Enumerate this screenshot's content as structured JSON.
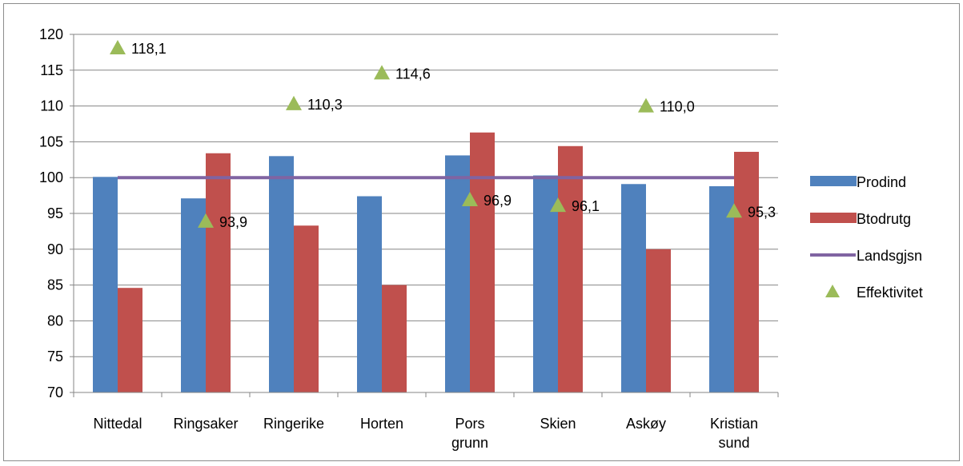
{
  "chart_data": {
    "type": "bar",
    "title": "",
    "xlabel": "",
    "ylabel": "",
    "ylim": [
      70,
      120
    ],
    "ytick_step": 5,
    "categories": [
      [
        "Nittedal"
      ],
      [
        "Ringsaker"
      ],
      [
        "Ringerike"
      ],
      [
        "Horten"
      ],
      [
        "Pors",
        "grunn"
      ],
      [
        "Skien"
      ],
      [
        "Askøy"
      ],
      [
        "Kristian",
        "sund"
      ]
    ],
    "series": [
      {
        "name": "Prodind",
        "kind": "bar",
        "color": "#4f81bd",
        "values": [
          100.1,
          97.1,
          103.0,
          97.4,
          103.1,
          100.3,
          99.1,
          98.8
        ]
      },
      {
        "name": "Btodrutg",
        "kind": "bar",
        "color": "#c0504d",
        "values": [
          84.6,
          103.4,
          93.3,
          85.0,
          106.3,
          104.4,
          90.0,
          103.6
        ]
      },
      {
        "name": "Landsgjsn",
        "kind": "line",
        "color": "#8064a2",
        "values": [
          100,
          100,
          100,
          100,
          100,
          100,
          100,
          100
        ]
      },
      {
        "name": "Effektivitet",
        "kind": "marker",
        "color": "#9bbb59",
        "values": [
          118.1,
          93.9,
          110.3,
          114.6,
          96.9,
          96.1,
          110.0,
          95.3
        ],
        "labels": [
          "118,1",
          "93,9",
          "110,3",
          "114,6",
          "96,9",
          "96,1",
          "110,0",
          "95,3"
        ]
      }
    ],
    "legend_position": "right",
    "grid": true
  }
}
